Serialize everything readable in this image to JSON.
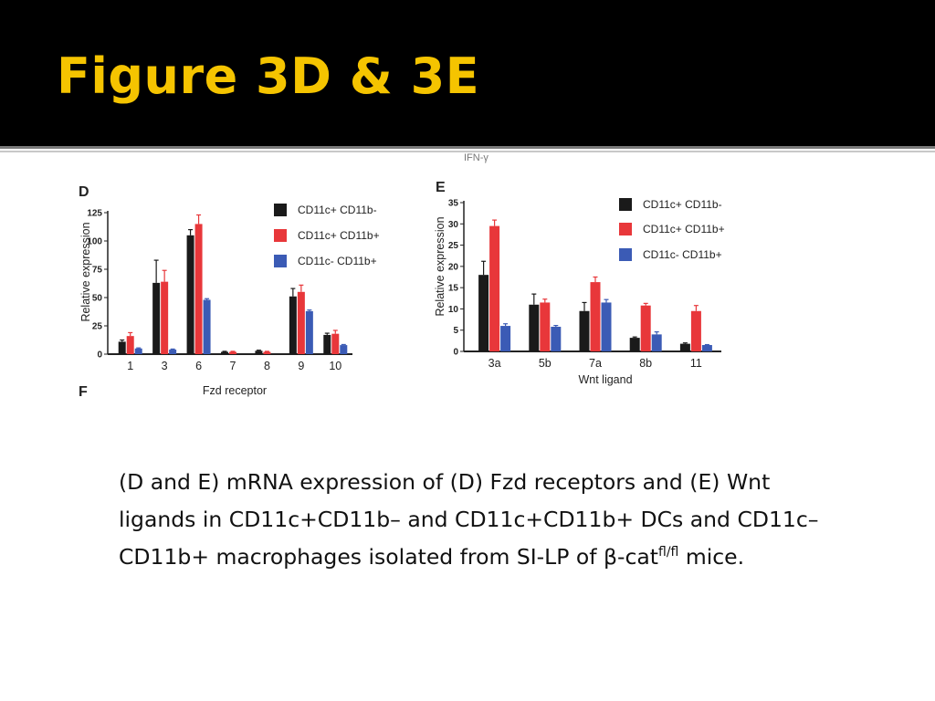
{
  "slide": {
    "title": "Figure  3D & 3E",
    "caption_main": "(D and E) mRNA expression of (D) Fzd receptors and (E) Wnt ligands in CD11c+CD11b– and CD11c+CD11b+ DCs and CD11c–CD11b+ macrophages isolated from SI-LP of β-cat",
    "caption_sup": "fl/fl",
    "caption_end": " mice.",
    "fragment_top": "IFN-γ",
    "fragment_f": "F"
  },
  "colors": {
    "title": "#f5c400",
    "series": [
      "#1a1a1a",
      "#e8373a",
      "#3b5bb5"
    ]
  },
  "chart_data": [
    {
      "panel": "D",
      "type": "bar",
      "categories": [
        "1",
        "3",
        "6",
        "7",
        "8",
        "9",
        "10"
      ],
      "xlabel": "Fzd receptor",
      "ylabel": "Relative expression",
      "yticks": [
        "0",
        "25",
        "50",
        "75",
        "100",
        "125"
      ],
      "ylim": [
        0,
        125
      ],
      "legend_position": "top-right",
      "series": [
        {
          "name": "CD11c+ CD11b-",
          "values": [
            11,
            63,
            105,
            2,
            3,
            51,
            17
          ],
          "errors": [
            1.5,
            20,
            5,
            0.5,
            0.5,
            7,
            1.5
          ]
        },
        {
          "name": "CD11c+ CD11b+",
          "values": [
            16,
            64,
            115,
            2,
            2,
            55,
            18
          ],
          "errors": [
            3,
            10,
            8,
            0.5,
            0.5,
            6,
            3
          ]
        },
        {
          "name": "CD11c- CD11b+",
          "values": [
            5,
            4,
            48,
            0,
            0,
            38,
            8
          ],
          "errors": [
            0.5,
            0.5,
            1,
            0,
            0,
            1,
            0.5
          ]
        }
      ],
      "grid": false
    },
    {
      "panel": "E",
      "type": "bar",
      "categories": [
        "3a",
        "5b",
        "7a",
        "8b",
        "11"
      ],
      "xlabel": "Wnt ligand",
      "ylabel": "Relative expression",
      "yticks": [
        "0",
        "5",
        "10",
        "15",
        "20",
        "25",
        "30",
        "35"
      ],
      "ylim": [
        0,
        35
      ],
      "legend_position": "top-right",
      "series": [
        {
          "name": "CD11c+ CD11b-",
          "values": [
            18,
            11,
            9.5,
            3.2,
            1.8
          ],
          "errors": [
            3.2,
            2.5,
            2,
            0.2,
            0.2
          ]
        },
        {
          "name": "CD11c+ CD11b+",
          "values": [
            29.5,
            11.5,
            16.3,
            10.8,
            9.5
          ],
          "errors": [
            1.4,
            0.8,
            1.2,
            0.5,
            1.3
          ]
        },
        {
          "name": "CD11c- CD11b+",
          "values": [
            6,
            5.8,
            11.5,
            4,
            1.5
          ],
          "errors": [
            0.5,
            0.3,
            0.7,
            0.6,
            0.1
          ]
        }
      ],
      "grid": false
    }
  ]
}
